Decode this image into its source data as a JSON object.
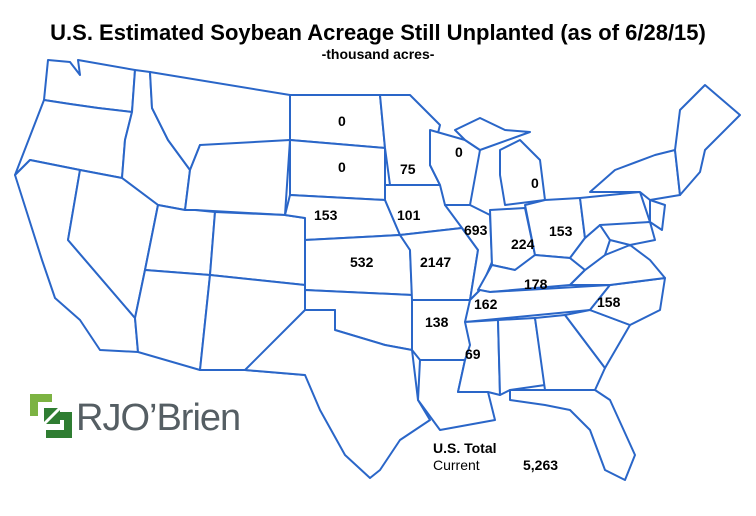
{
  "title": "U.S. Estimated Soybean Acreage Still Unplanted (as of 6/28/15)",
  "subtitle": "-thousand acres-",
  "logo": {
    "text": "RJO’Brien"
  },
  "totals": {
    "label": "U.S. Total",
    "current_label": "Current",
    "current_value": "5,263"
  },
  "states": [
    {
      "id": "ND",
      "value": "0"
    },
    {
      "id": "SD",
      "value": "0"
    },
    {
      "id": "NE",
      "value": "153"
    },
    {
      "id": "KS",
      "value": "532"
    },
    {
      "id": "MN",
      "value": "75"
    },
    {
      "id": "IA",
      "value": "101"
    },
    {
      "id": "MO",
      "value": "2147"
    },
    {
      "id": "WI",
      "value": "0"
    },
    {
      "id": "IL",
      "value": "693"
    },
    {
      "id": "MI",
      "value": "0"
    },
    {
      "id": "IN",
      "value": "224"
    },
    {
      "id": "OH",
      "value": "153"
    },
    {
      "id": "KY",
      "value": "178"
    },
    {
      "id": "TN",
      "value": "162"
    },
    {
      "id": "NC",
      "value": "158"
    },
    {
      "id": "AR",
      "value": "138"
    },
    {
      "id": "MS",
      "value": "69"
    }
  ],
  "colors": {
    "state_outline": "#2a66c8",
    "logo_green_dark": "#2f7d32",
    "logo_green_light": "#7cb342",
    "logo_text": "#555e63"
  }
}
